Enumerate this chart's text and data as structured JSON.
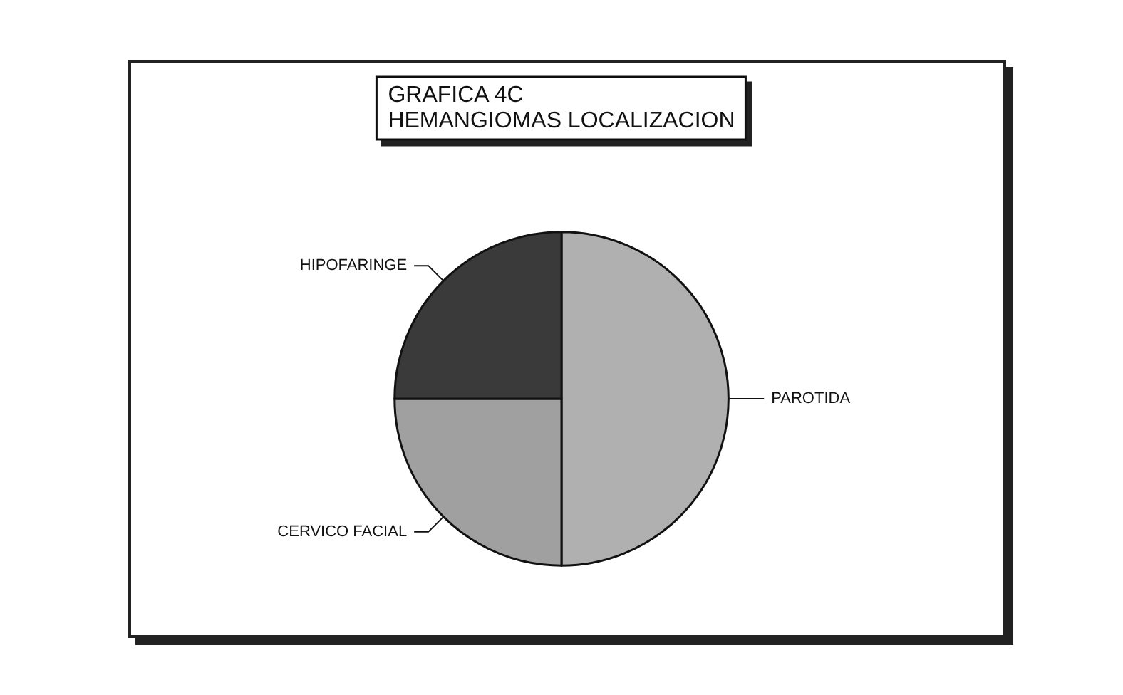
{
  "chart_data": {
    "type": "pie",
    "title": "GRAFICA 4C\nHEMANGIOMAS LOCALIZACION",
    "categories": [
      "PAROTIDA",
      "CERVICO FACIAL",
      "HIPOFARINGE"
    ],
    "values": [
      50,
      25,
      25
    ],
    "colors": [
      "#b0b0b0",
      "#a0a0a0",
      "#3a3a3a"
    ],
    "legend": false
  }
}
